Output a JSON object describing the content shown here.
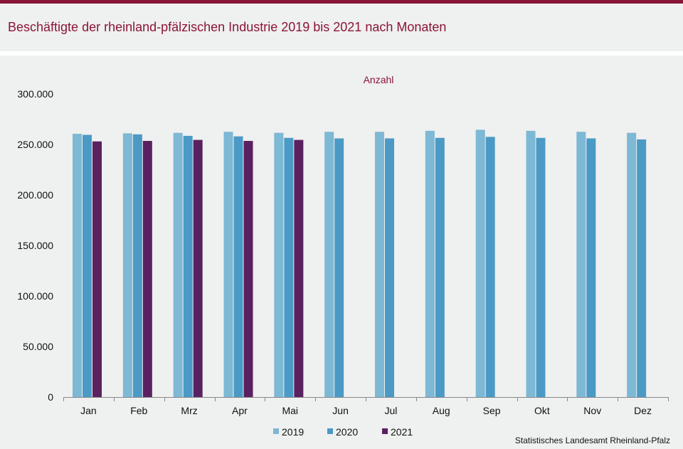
{
  "header": {
    "title": "Beschäftigte der rheinland-pfälzischen Industrie 2019 bis 2021 nach Monaten"
  },
  "footer": {
    "source": "Statistisches Landesamt Rheinland-Pfalz"
  },
  "colors": {
    "accent": "#8a1538",
    "s2019": "#7db8d4",
    "s2020": "#4b9ac5",
    "s2021": "#5a2160"
  },
  "chart_data": {
    "type": "bar",
    "unit_label": "Anzahl",
    "categories": [
      "Jan",
      "Feb",
      "Mrz",
      "Apr",
      "Mai",
      "Jun",
      "Jul",
      "Aug",
      "Sep",
      "Okt",
      "Nov",
      "Dez"
    ],
    "series": [
      {
        "name": "2019",
        "values": [
          260500,
          261000,
          261500,
          262500,
          261500,
          262500,
          262500,
          263500,
          264500,
          263500,
          262500,
          261500
        ]
      },
      {
        "name": "2020",
        "values": [
          259500,
          260000,
          258500,
          258000,
          256500,
          256000,
          256000,
          256500,
          257500,
          256500,
          256000,
          255000
        ]
      },
      {
        "name": "2021",
        "values": [
          253000,
          253500,
          254500,
          253500,
          254500,
          null,
          null,
          null,
          null,
          null,
          null,
          null
        ]
      }
    ],
    "ylim": [
      0,
      300000
    ],
    "yticks": [
      0,
      50000,
      100000,
      150000,
      200000,
      250000,
      300000
    ],
    "ytick_labels": [
      "0",
      "50.000",
      "100.000",
      "150.000",
      "200.000",
      "250.000",
      "300.000"
    ],
    "grid": false,
    "legend_position": "bottom"
  }
}
